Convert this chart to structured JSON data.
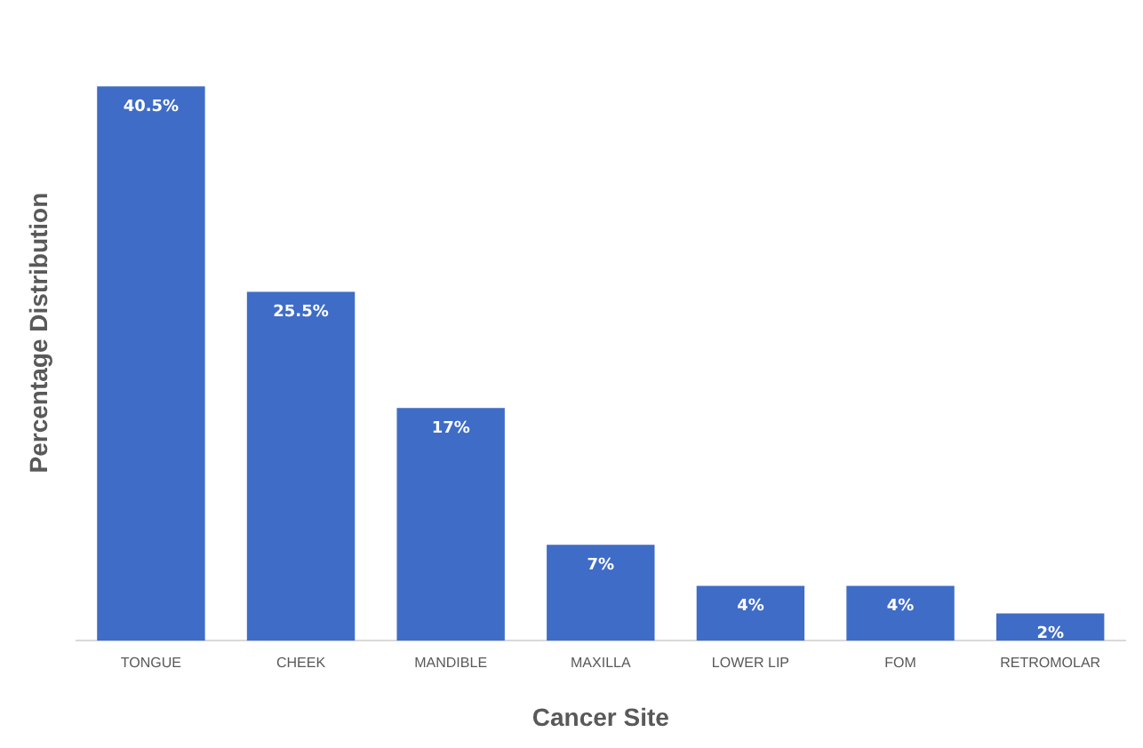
{
  "chart_data": {
    "type": "bar",
    "xlabel": "Cancer Site",
    "ylabel": "Percentage Distribution",
    "categories": [
      "TONGUE",
      "CHEEK",
      "MANDIBLE",
      "MAXILLA",
      "LOWER LIP",
      "FOM",
      "RETROMOLAR"
    ],
    "values": [
      40.5,
      25.5,
      17,
      7,
      4,
      4,
      2
    ],
    "value_labels": [
      "40.5%",
      "25.5%",
      "17%",
      "7%",
      "4%",
      "4%",
      "2%"
    ],
    "color": "#3f6cc6",
    "grid": false,
    "legend": false
  }
}
